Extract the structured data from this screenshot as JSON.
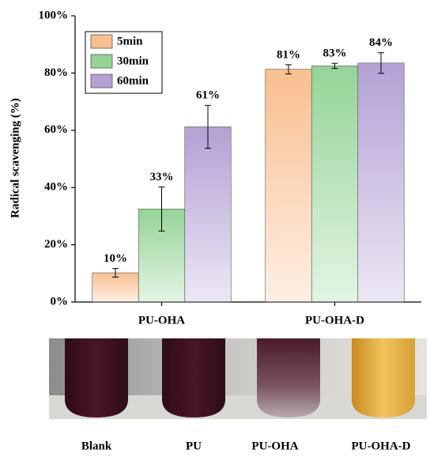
{
  "chart_data": {
    "type": "bar",
    "ylabel": "Radical scavenging (%)",
    "categories": [
      "PU-OHA",
      "PU-OHA-D"
    ],
    "series": [
      {
        "name": "5min",
        "color": "#f9bf8f",
        "values": [
          10.2,
          81.3
        ],
        "errors": [
          1.5,
          1.6
        ],
        "value_labels": [
          "10%",
          "81%"
        ]
      },
      {
        "name": "30min",
        "color": "#94d495",
        "values": [
          32.5,
          82.5
        ],
        "errors": [
          7.7,
          0.9
        ],
        "value_labels": [
          "33%",
          "83%"
        ]
      },
      {
        "name": "60min",
        "color": "#b4a0d4",
        "values": [
          61.2,
          83.5
        ],
        "errors": [
          7.5,
          3.6
        ],
        "value_labels": [
          "61%",
          "84%"
        ]
      }
    ],
    "ylim": [
      0,
      100
    ],
    "yticks": [
      {
        "value": 0,
        "label": "0%"
      },
      {
        "value": 20,
        "label": "20%"
      },
      {
        "value": 40,
        "label": "40%"
      },
      {
        "value": 60,
        "label": "60%"
      },
      {
        "value": 80,
        "label": "80%"
      },
      {
        "value": 100,
        "label": "100%"
      }
    ],
    "legend": "upper left",
    "grid": false
  },
  "photo": {
    "labels": [
      "Blank",
      "PU",
      "PU-OHA",
      "PU-OHA-D"
    ]
  }
}
